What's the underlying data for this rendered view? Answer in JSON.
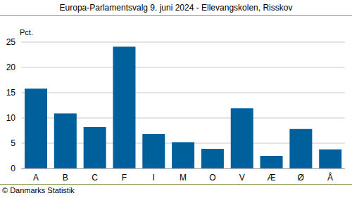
{
  "chart_data": {
    "type": "bar",
    "title": "Europa-Parlamentsvalg 9. juni 2024 - Ellevangskolen, Risskov",
    "ylabel": "Pct.",
    "annotations": [
      "© Danmarks Statistik"
    ],
    "categories": [
      "A",
      "B",
      "C",
      "F",
      "I",
      "M",
      "O",
      "V",
      "Æ",
      "Ø",
      "Å"
    ],
    "values": [
      15.8,
      10.9,
      8.2,
      24.1,
      6.8,
      5.2,
      3.9,
      11.9,
      2.5,
      7.8,
      3.8
    ],
    "color": "#00609c",
    "ylim": [
      0,
      25
    ],
    "yticks": [
      0,
      5,
      10,
      15,
      20,
      25
    ],
    "grid": true
  }
}
